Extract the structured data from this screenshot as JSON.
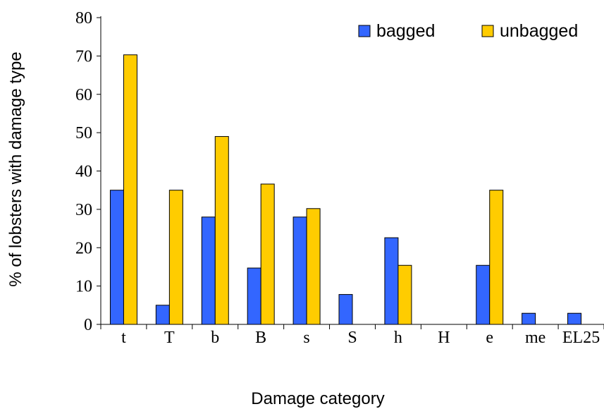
{
  "chart_data": {
    "type": "bar",
    "xlabel": "Damage category",
    "ylabel": "% of lobsters with damage type",
    "ylim": [
      0,
      80
    ],
    "yticks": [
      0,
      10,
      20,
      30,
      40,
      50,
      60,
      70,
      80
    ],
    "grid": false,
    "legend_position": "top-right",
    "categories": [
      "t",
      "T",
      "b",
      "B",
      "s",
      "S",
      "h",
      "H",
      "e",
      "me",
      "EL25"
    ],
    "series": [
      {
        "name": "bagged",
        "color": "#3366FF",
        "values": [
          35,
          5,
          28,
          14.7,
          28,
          7.8,
          22.6,
          0,
          15.4,
          2.9,
          2.9
        ]
      },
      {
        "name": "unbagged",
        "color": "#FFCC00",
        "values": [
          70.3,
          35,
          49,
          36.6,
          30.2,
          0,
          15.4,
          0,
          35,
          0,
          0
        ]
      }
    ]
  }
}
